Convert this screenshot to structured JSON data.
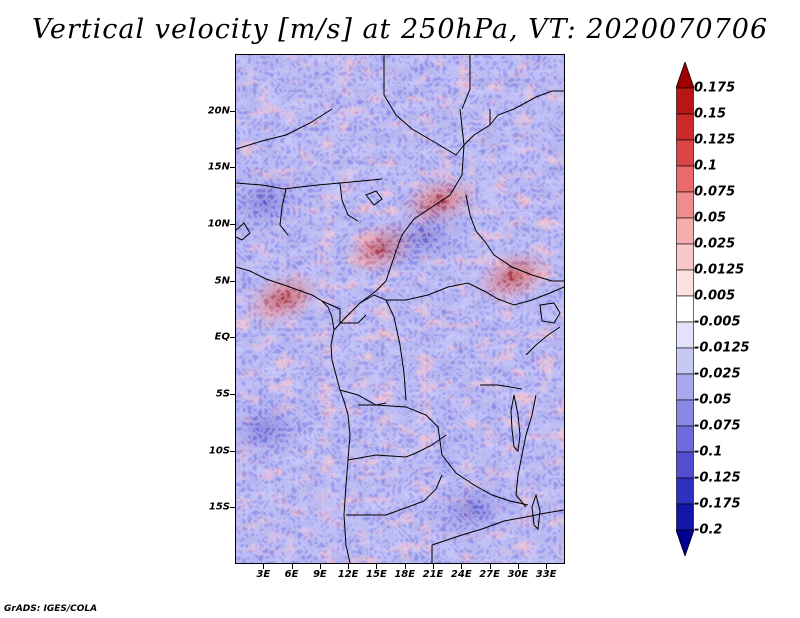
{
  "title": "Vertical velocity [m/s] at 250hPa, VT: 2020070706",
  "footer": "GrADS: IGES/COLA",
  "map": {
    "region": "Central Africa",
    "lon_range": [
      0,
      35
    ],
    "lat_range": [
      -20,
      25
    ],
    "lat_labels": [
      {
        "text": "20N",
        "lat": 20
      },
      {
        "text": "15N",
        "lat": 15
      },
      {
        "text": "10N",
        "lat": 10
      },
      {
        "text": "5N",
        "lat": 5
      },
      {
        "text": "EQ",
        "lat": 0
      },
      {
        "text": "5S",
        "lat": -5
      },
      {
        "text": "10S",
        "lat": -10
      },
      {
        "text": "15S",
        "lat": -15
      }
    ],
    "lon_labels": [
      {
        "text": "3E",
        "lon": 3
      },
      {
        "text": "6E",
        "lon": 6
      },
      {
        "text": "9E",
        "lon": 9
      },
      {
        "text": "12E",
        "lon": 12
      },
      {
        "text": "15E",
        "lon": 15
      },
      {
        "text": "18E",
        "lon": 18
      },
      {
        "text": "21E",
        "lon": 21
      },
      {
        "text": "24E",
        "lon": 24
      },
      {
        "text": "27E",
        "lon": 27
      },
      {
        "text": "30E",
        "lon": 30
      },
      {
        "text": "33E",
        "lon": 33
      }
    ],
    "features": [
      {
        "name": "gulf-of-guinea-uplift",
        "lon": 5,
        "lat": 3.5,
        "sign": 1
      },
      {
        "name": "cameroon-chad-uplift",
        "lon": 15.5,
        "lat": 8,
        "sign": 1
      },
      {
        "name": "sudan-uplift",
        "lon": 21.5,
        "lat": 12,
        "sign": 1
      },
      {
        "name": "east-africa-uplift",
        "lon": 29.5,
        "lat": 5.5,
        "sign": 1
      },
      {
        "name": "southern-atlantic-subsidence",
        "lon": 3,
        "lat": -8,
        "sign": -1
      },
      {
        "name": "zambia-subsidence",
        "lon": 25,
        "lat": -15,
        "sign": -1
      },
      {
        "name": "chad-subsidence",
        "lon": 20,
        "lat": 9,
        "sign": -1
      },
      {
        "name": "west-africa-subsidence",
        "lon": 3,
        "lat": 12,
        "sign": -1
      }
    ]
  },
  "colorbar": {
    "levels": [
      "0.175",
      "0.15",
      "0.125",
      "0.1",
      "0.075",
      "0.05",
      "0.025",
      "0.0125",
      "0.005",
      "-0.005",
      "-0.0125",
      "-0.025",
      "-0.05",
      "-0.075",
      "-0.1",
      "-0.125",
      "-0.175",
      "-0.2"
    ],
    "colors": [
      "#a00000",
      "#b81515",
      "#cc2a2a",
      "#dc4545",
      "#e86a6a",
      "#f08c8c",
      "#f5adad",
      "#f8c8c8",
      "#fbe2e2",
      "#ffffff",
      "#e2e2fb",
      "#c8c8f5",
      "#a8a8ee",
      "#8a8ae6",
      "#6c6cdc",
      "#4f4fcf",
      "#3030c0",
      "#1414a8",
      "#000090"
    ]
  }
}
